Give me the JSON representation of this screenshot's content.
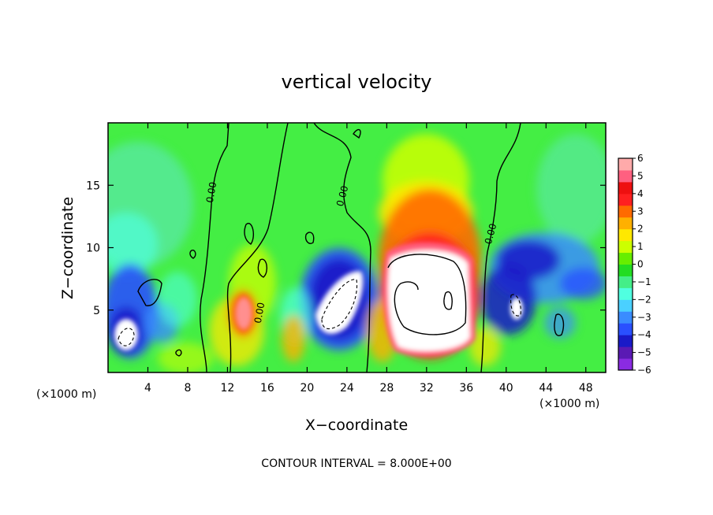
{
  "chart_data": {
    "type": "heatmap",
    "title": "vertical velocity",
    "xlabel": "X−coordinate",
    "ylabel": "Z−coordinate",
    "x_unit": "(×1000 m)",
    "z_unit": "(×1000 m)",
    "xlim": [
      0,
      50000
    ],
    "ylim": [
      0,
      20000
    ],
    "x_ticks": [
      4,
      8,
      12,
      16,
      20,
      24,
      28,
      32,
      36,
      40,
      44,
      48
    ],
    "y_ticks": [
      5,
      10,
      15
    ],
    "contour_interval_text": "CONTOUR INTERVAL = 8.000E+00",
    "contour_labels": [
      "0.00",
      "0.00",
      "0.00",
      "0.00"
    ],
    "colorbar": {
      "ticks": [
        "6",
        "5",
        "4",
        "3",
        "2",
        "1",
        "0",
        "−1",
        "−2",
        "−3",
        "−4",
        "−5",
        "−6"
      ],
      "range": [
        -6,
        6
      ],
      "colors": [
        "#8a2be2",
        "#5a1ab4",
        "#1a1ac8",
        "#2a50ff",
        "#3a8cff",
        "#4ad0ff",
        "#50ffe0",
        "#44ee88",
        "#22dd22",
        "#66ee00",
        "#ccff00",
        "#ffe800",
        "#ffb000",
        "#ff6a00",
        "#ff2020",
        "#ee1010",
        "#ff6080",
        "#ffaaaa"
      ]
    },
    "features": [
      {
        "name": "updraft core",
        "x": 32000,
        "z": 6000,
        "value": 6
      },
      {
        "name": "updraft",
        "x": 13500,
        "z": 5000,
        "value": 5
      },
      {
        "name": "downdraft",
        "x": 22500,
        "z": 4800,
        "value": -6
      },
      {
        "name": "downdraft",
        "x": 2000,
        "z": 3000,
        "value": -6
      },
      {
        "name": "downdraft",
        "x": 40500,
        "z": 5000,
        "value": -6
      }
    ]
  }
}
